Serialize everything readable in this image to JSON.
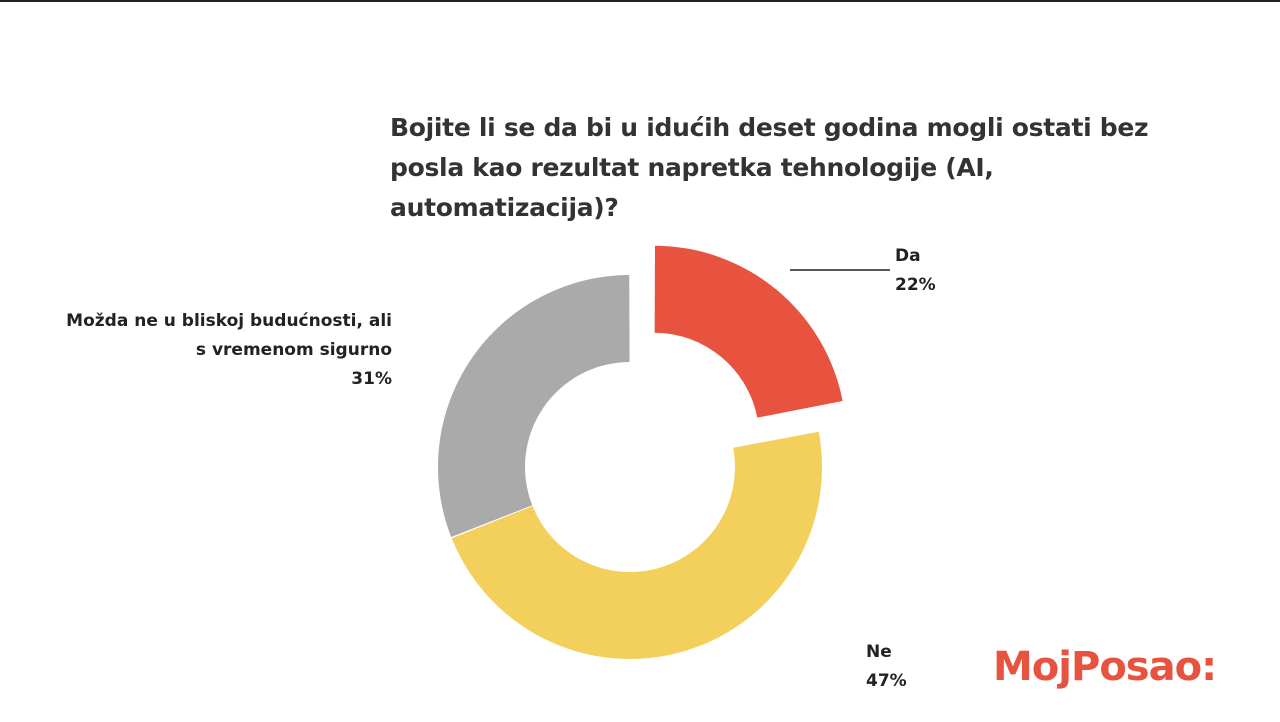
{
  "chart_data": {
    "type": "pie",
    "donut": true,
    "title": "Bojite li se da bi u idućih deset godina mogli ostati bez posla kao rezultat napretka tehnologije (AI, automatizacija)?",
    "categories": [
      "Da",
      "Ne",
      "Možda ne u bliskoj budućnosti, ali s vremenom sigurno"
    ],
    "values": [
      22,
      47,
      31
    ],
    "value_labels": [
      "22%",
      "47%",
      "31%"
    ],
    "colors": [
      "#e8533f",
      "#f3cf5c",
      "#aaaaaa"
    ]
  },
  "logo": "MojPosao:"
}
